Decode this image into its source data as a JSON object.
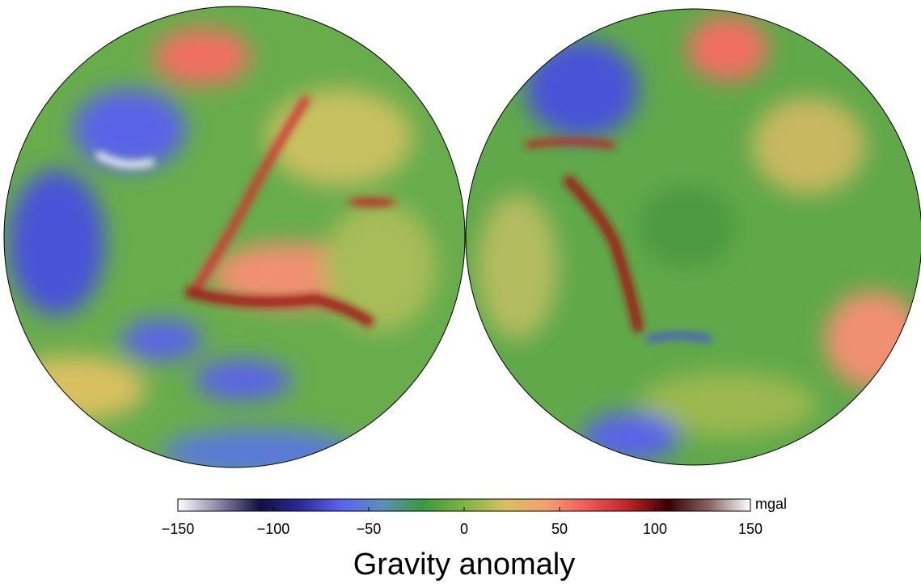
{
  "title": "Gravity anomaly",
  "colorbar": {
    "unit": "mgal",
    "range": [
      -150,
      150
    ],
    "ticks": [
      {
        "value": -150,
        "label": "−150"
      },
      {
        "value": -100,
        "label": "−100"
      },
      {
        "value": -50,
        "label": "−50"
      },
      0,
      50,
      100,
      150
    ],
    "colors": [
      "#ffffff",
      "#8a86a8",
      "#141040",
      "#2a2a9a",
      "#5a64f0",
      "#5d8fb8",
      "#3c9a3c",
      "#7cb446",
      "#d8c060",
      "#f4a070",
      "#f05a5a",
      "#c02424",
      "#3a0000",
      "#8a6464",
      "#ffffff"
    ]
  }
}
